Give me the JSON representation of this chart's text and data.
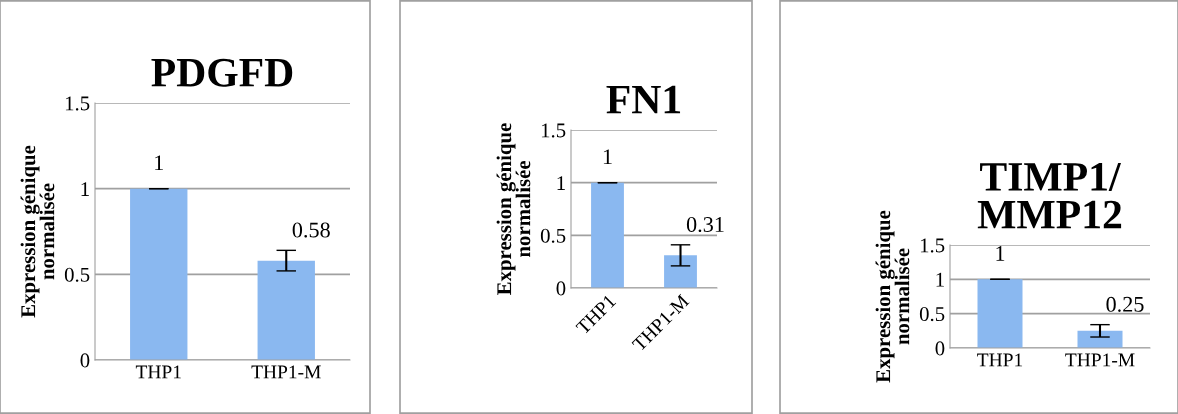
{
  "chart_data": [
    {
      "type": "bar",
      "title": "PDGFD",
      "ylabel": "Expression génique\nnormalisée",
      "categories": [
        "THP1",
        "THP1-M"
      ],
      "values": [
        1,
        0.58
      ],
      "errors": [
        0,
        0.06
      ],
      "color": "#8ab8f0",
      "ylim": [
        0,
        1.5
      ],
      "yticks": [
        0,
        0.5,
        1,
        1.5
      ],
      "grid": "y",
      "data_labels": true
    },
    {
      "type": "bar",
      "title": "FN1",
      "ylabel": "Expression génique\nnormalisée",
      "categories": [
        "THP1",
        "THP1-M"
      ],
      "values": [
        1,
        0.31
      ],
      "errors": [
        0,
        0.1
      ],
      "color": "#8ab8f0",
      "ylim": [
        0,
        1.5
      ],
      "yticks": [
        0,
        0.5,
        1,
        1.5
      ],
      "grid": "y",
      "data_labels": true
    },
    {
      "type": "bar",
      "title": "TIMP1/\nMMP12",
      "ylabel": "Expression génique\nnormalisée",
      "categories": [
        "THP1",
        "THP1-M"
      ],
      "values": [
        1,
        0.25
      ],
      "errors": [
        0,
        0.09
      ],
      "color": "#8ab8f0",
      "ylim": [
        0,
        1.5
      ],
      "yticks": [
        0,
        0.5,
        1,
        1.5
      ],
      "grid": "y",
      "data_labels": true
    }
  ]
}
